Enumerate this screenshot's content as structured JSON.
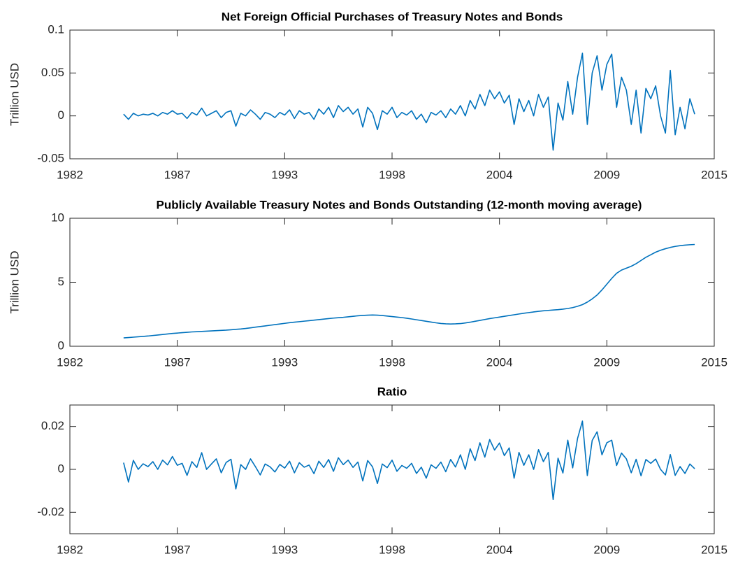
{
  "chart_data": [
    {
      "type": "line",
      "title": "Net Foreign Official Purchases of Treasury Notes and Bonds",
      "ylabel": "Trillion USD",
      "color": "#0072BD",
      "xlim": [
        1982,
        2015
      ],
      "xticks": [
        1982,
        {
          "value": 1987.5,
          "label": "1987"
        },
        1993,
        {
          "value": 1998.5,
          "label": "1998"
        },
        2004,
        {
          "value": 2009.5,
          "label": "2009"
        },
        2015
      ],
      "ylim": [
        -0.05,
        0.1
      ],
      "yticks": [
        -0.05,
        0,
        0.05,
        0.1
      ],
      "x": [
        1984.75,
        1985,
        1985.25,
        1985.5,
        1985.75,
        1986,
        1986.25,
        1986.5,
        1986.75,
        1987,
        1987.25,
        1987.5,
        1987.75,
        1988,
        1988.25,
        1988.5,
        1988.75,
        1989,
        1989.25,
        1989.5,
        1989.75,
        1990,
        1990.25,
        1990.5,
        1990.75,
        1991,
        1991.25,
        1991.5,
        1991.75,
        1992,
        1992.25,
        1992.5,
        1992.75,
        1993,
        1993.25,
        1993.5,
        1993.75,
        1994,
        1994.25,
        1994.5,
        1994.75,
        1995,
        1995.25,
        1995.5,
        1995.75,
        1996,
        1996.25,
        1996.5,
        1996.75,
        1997,
        1997.25,
        1997.5,
        1997.75,
        1998,
        1998.25,
        1998.5,
        1998.75,
        1999,
        1999.25,
        1999.5,
        1999.75,
        2000,
        2000.25,
        2000.5,
        2000.75,
        2001,
        2001.25,
        2001.5,
        2001.75,
        2002,
        2002.25,
        2002.5,
        2002.75,
        2003,
        2003.25,
        2003.5,
        2003.75,
        2004,
        2004.25,
        2004.5,
        2004.75,
        2005,
        2005.25,
        2005.5,
        2005.75,
        2006,
        2006.25,
        2006.5,
        2006.75,
        2007,
        2007.25,
        2007.5,
        2007.75,
        2008,
        2008.25,
        2008.5,
        2008.75,
        2009,
        2009.25,
        2009.5,
        2009.75,
        2010,
        2010.25,
        2010.5,
        2010.75,
        2011,
        2011.25,
        2011.5,
        2011.75,
        2012,
        2012.25,
        2012.5,
        2012.75,
        2013,
        2013.25,
        2013.5,
        2013.75,
        2014
      ],
      "values": [
        0.002,
        -0.004,
        0.003,
        0,
        0.002,
        0.001,
        0.003,
        0,
        0.004,
        0.002,
        0.006,
        0.002,
        0.003,
        -0.003,
        0.004,
        0.001,
        0.009,
        0,
        0.003,
        0.006,
        -0.002,
        0.004,
        0.006,
        -0.012,
        0.003,
        0,
        0.007,
        0.002,
        -0.004,
        0.004,
        0.002,
        -0.002,
        0.004,
        0.001,
        0.007,
        -0.003,
        0.006,
        0.002,
        0.004,
        -0.004,
        0.008,
        0.002,
        0.01,
        -0.002,
        0.012,
        0.005,
        0.01,
        0.002,
        0.008,
        -0.013,
        0.01,
        0.003,
        -0.016,
        0.006,
        0.002,
        0.01,
        -0.002,
        0.004,
        0.001,
        0.006,
        -0.004,
        0.002,
        -0.008,
        0.004,
        0.001,
        0.006,
        -0.002,
        0.008,
        0.002,
        0.012,
        0,
        0.018,
        0.008,
        0.025,
        0.012,
        0.03,
        0.02,
        0.028,
        0.015,
        0.024,
        -0.01,
        0.02,
        0.005,
        0.018,
        0,
        0.025,
        0.01,
        0.022,
        -0.04,
        0.015,
        -0.005,
        0.04,
        0.002,
        0.045,
        0.073,
        -0.01,
        0.05,
        0.07,
        0.03,
        0.06,
        0.072,
        0.01,
        0.045,
        0.03,
        -0.01,
        0.03,
        -0.02,
        0.032,
        0.02,
        0.035,
        0,
        -0.02,
        0.053,
        -0.022,
        0.01,
        -0.015,
        0.02,
        0.002
      ]
    },
    {
      "type": "line",
      "title": "Publicly Available Treasury Notes and Bonds Outstanding (12-month moving average)",
      "ylabel": "Trillion USD",
      "color": "#0072BD",
      "xlim": [
        1982,
        2015
      ],
      "xticks": [
        1982,
        {
          "value": 1987.5,
          "label": "1987"
        },
        1993,
        {
          "value": 1998.5,
          "label": "1998"
        },
        2004,
        {
          "value": 2009.5,
          "label": "2009"
        },
        2015
      ],
      "ylim": [
        0,
        10
      ],
      "yticks": [
        0,
        5,
        10
      ],
      "x": [
        1984.75,
        1985,
        1985.25,
        1985.5,
        1985.75,
        1986,
        1986.25,
        1986.5,
        1986.75,
        1987,
        1987.25,
        1987.5,
        1987.75,
        1988,
        1988.25,
        1988.5,
        1988.75,
        1989,
        1989.25,
        1989.5,
        1989.75,
        1990,
        1990.25,
        1990.5,
        1990.75,
        1991,
        1991.25,
        1991.5,
        1991.75,
        1992,
        1992.25,
        1992.5,
        1992.75,
        1993,
        1993.25,
        1993.5,
        1993.75,
        1994,
        1994.25,
        1994.5,
        1994.75,
        1995,
        1995.25,
        1995.5,
        1995.75,
        1996,
        1996.25,
        1996.5,
        1996.75,
        1997,
        1997.25,
        1997.5,
        1997.75,
        1998,
        1998.25,
        1998.5,
        1998.75,
        1999,
        1999.25,
        1999.5,
        1999.75,
        2000,
        2000.25,
        2000.5,
        2000.75,
        2001,
        2001.25,
        2001.5,
        2001.75,
        2002,
        2002.25,
        2002.5,
        2002.75,
        2003,
        2003.25,
        2003.5,
        2003.75,
        2004,
        2004.25,
        2004.5,
        2004.75,
        2005,
        2005.25,
        2005.5,
        2005.75,
        2006,
        2006.25,
        2006.5,
        2006.75,
        2007,
        2007.25,
        2007.5,
        2007.75,
        2008,
        2008.25,
        2008.5,
        2008.75,
        2009,
        2009.25,
        2009.5,
        2009.75,
        2010,
        2010.25,
        2010.5,
        2010.75,
        2011,
        2011.25,
        2011.5,
        2011.75,
        2012,
        2012.25,
        2012.5,
        2012.75,
        2013,
        2013.25,
        2013.5,
        2013.75,
        2014
      ],
      "values": [
        0.65,
        0.68,
        0.71,
        0.74,
        0.77,
        0.8,
        0.84,
        0.88,
        0.92,
        0.96,
        1.0,
        1.03,
        1.06,
        1.09,
        1.12,
        1.14,
        1.16,
        1.18,
        1.2,
        1.22,
        1.24,
        1.26,
        1.29,
        1.32,
        1.35,
        1.39,
        1.44,
        1.49,
        1.54,
        1.59,
        1.64,
        1.69,
        1.74,
        1.79,
        1.84,
        1.88,
        1.92,
        1.96,
        2.0,
        2.04,
        2.08,
        2.12,
        2.16,
        2.2,
        2.23,
        2.26,
        2.3,
        2.34,
        2.38,
        2.41,
        2.43,
        2.44,
        2.43,
        2.4,
        2.36,
        2.32,
        2.28,
        2.24,
        2.19,
        2.13,
        2.07,
        2.01,
        1.95,
        1.89,
        1.83,
        1.78,
        1.75,
        1.74,
        1.75,
        1.77,
        1.82,
        1.88,
        1.95,
        2.02,
        2.09,
        2.16,
        2.22,
        2.28,
        2.34,
        2.4,
        2.46,
        2.52,
        2.58,
        2.63,
        2.68,
        2.73,
        2.77,
        2.8,
        2.83,
        2.86,
        2.9,
        2.95,
        3.02,
        3.12,
        3.25,
        3.45,
        3.7,
        4.0,
        4.4,
        4.85,
        5.3,
        5.7,
        5.95,
        6.1,
        6.25,
        6.45,
        6.7,
        6.95,
        7.15,
        7.35,
        7.5,
        7.62,
        7.72,
        7.8,
        7.86,
        7.9,
        7.93,
        7.95
      ]
    },
    {
      "type": "line",
      "title": "Ratio",
      "color": "#0072BD",
      "xlim": [
        1982,
        2015
      ],
      "xticks": [
        1982,
        {
          "value": 1987.5,
          "label": "1987"
        },
        1993,
        {
          "value": 1998.5,
          "label": "1998"
        },
        2004,
        {
          "value": 2009.5,
          "label": "2009"
        },
        2015
      ],
      "ylim": [
        -0.03,
        0.03
      ],
      "yticks": [
        -0.02,
        0,
        0.02
      ],
      "x": [
        1984.75,
        1985,
        1985.25,
        1985.5,
        1985.75,
        1986,
        1986.25,
        1986.5,
        1986.75,
        1987,
        1987.25,
        1987.5,
        1987.75,
        1988,
        1988.25,
        1988.5,
        1988.75,
        1989,
        1989.25,
        1989.5,
        1989.75,
        1990,
        1990.25,
        1990.5,
        1990.75,
        1991,
        1991.25,
        1991.5,
        1991.75,
        1992,
        1992.25,
        1992.5,
        1992.75,
        1993,
        1993.25,
        1993.5,
        1993.75,
        1994,
        1994.25,
        1994.5,
        1994.75,
        1995,
        1995.25,
        1995.5,
        1995.75,
        1996,
        1996.25,
        1996.5,
        1996.75,
        1997,
        1997.25,
        1997.5,
        1997.75,
        1998,
        1998.25,
        1998.5,
        1998.75,
        1999,
        1999.25,
        1999.5,
        1999.75,
        2000,
        2000.25,
        2000.5,
        2000.75,
        2001,
        2001.25,
        2001.5,
        2001.75,
        2002,
        2002.25,
        2002.5,
        2002.75,
        2003,
        2003.25,
        2003.5,
        2003.75,
        2004,
        2004.25,
        2004.5,
        2004.75,
        2005,
        2005.25,
        2005.5,
        2005.75,
        2006,
        2006.25,
        2006.5,
        2006.75,
        2007,
        2007.25,
        2007.5,
        2007.75,
        2008,
        2008.25,
        2008.5,
        2008.75,
        2009,
        2009.25,
        2009.5,
        2009.75,
        2010,
        2010.25,
        2010.5,
        2010.75,
        2011,
        2011.25,
        2011.5,
        2011.75,
        2012,
        2012.25,
        2012.5,
        2012.75,
        2013,
        2013.25,
        2013.5,
        2013.75,
        2014
      ],
      "values": [
        0.0031,
        -0.0059,
        0.0042,
        0,
        0.0026,
        0.0013,
        0.0036,
        0,
        0.0043,
        0.0021,
        0.006,
        0.0019,
        0.0028,
        -0.0028,
        0.0036,
        0.0009,
        0.0078,
        0,
        0.0025,
        0.0049,
        -0.0016,
        0.0032,
        0.0047,
        -0.0091,
        0.0022,
        0,
        0.0049,
        0.0013,
        -0.0026,
        0.0025,
        0.0012,
        -0.0012,
        0.0023,
        0.0006,
        0.0038,
        -0.0016,
        0.0031,
        0.001,
        0.002,
        -0.002,
        0.0038,
        0.0009,
        0.0046,
        -0.0009,
        0.0054,
        0.0022,
        0.0043,
        0.0009,
        0.0034,
        -0.0054,
        0.0041,
        0.0012,
        -0.0066,
        0.0025,
        0.0008,
        0.0043,
        -0.0009,
        0.0018,
        0.0005,
        0.0028,
        -0.0019,
        0.001,
        -0.0041,
        0.0021,
        0.0005,
        0.0034,
        -0.0011,
        0.0046,
        0.0011,
        0.0068,
        0,
        0.0096,
        0.0041,
        0.0124,
        0.0057,
        0.0139,
        0.009,
        0.0123,
        0.0064,
        0.01,
        -0.0041,
        0.0079,
        0.0019,
        0.0068,
        0,
        0.0092,
        0.0036,
        0.0079,
        -0.0141,
        0.0052,
        -0.0017,
        0.0136,
        0.0007,
        0.0144,
        0.0225,
        -0.0029,
        0.0135,
        0.0175,
        0.0068,
        0.0124,
        0.0136,
        0.0018,
        0.0076,
        0.0049,
        -0.0016,
        0.0047,
        -0.003,
        0.0046,
        0.0028,
        0.0048,
        0,
        -0.0026,
        0.0069,
        -0.0028,
        0.0013,
        -0.0019,
        0.0025,
        0.0003
      ]
    }
  ]
}
